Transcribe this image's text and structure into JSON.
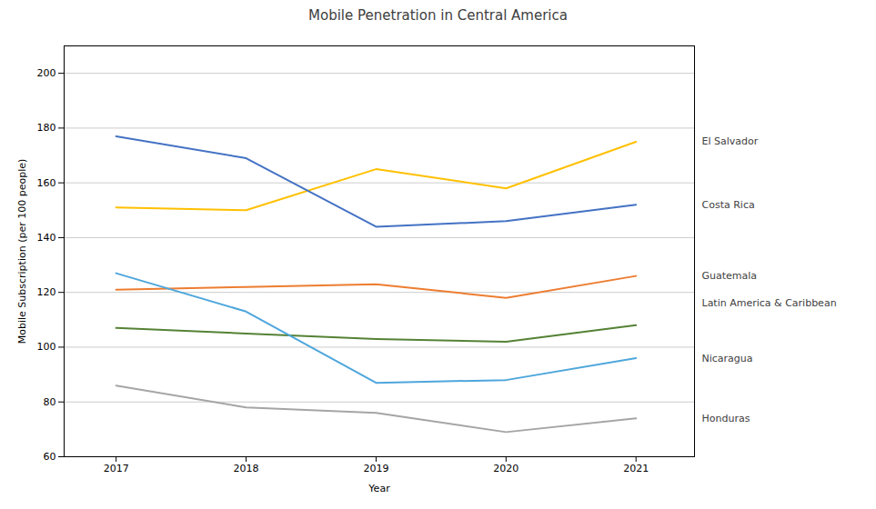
{
  "chart_data": {
    "type": "line",
    "title": "Mobile Penetration in Central America",
    "xlabel": "Year",
    "ylabel": "Mobile Subscription (per 100 people)",
    "x": [
      2017,
      2018,
      2019,
      2020,
      2021
    ],
    "series": [
      {
        "name": "El Salvador",
        "color": "#FFC000",
        "values": [
          151,
          150,
          165,
          158,
          175
        ]
      },
      {
        "name": "Costa Rica",
        "color": "#4472C4",
        "values": [
          177,
          169,
          144,
          146,
          152
        ]
      },
      {
        "name": "Guatemala",
        "color": "#ED7D31",
        "values": [
          121,
          122,
          123,
          118,
          126
        ]
      },
      {
        "name": "Latin America & Caribbean",
        "color": "#548235",
        "values": [
          107,
          105,
          103,
          102,
          108
        ]
      },
      {
        "name": "Nicaragua",
        "color": "#4EA6DC",
        "values": [
          127,
          113,
          87,
          88,
          96
        ]
      },
      {
        "name": "Honduras",
        "color": "#A5A5A5",
        "values": [
          86,
          78,
          76,
          69,
          74
        ]
      }
    ],
    "xlim": [
      2016.6,
      2021.45
    ],
    "xticks": [
      2017,
      2018,
      2019,
      2020,
      2021
    ],
    "ylim": [
      60,
      210
    ],
    "yticks": [
      60,
      80,
      100,
      120,
      140,
      160,
      180,
      200
    ],
    "grid": "y",
    "annotations": [
      {
        "text": "El Salvador",
        "x": 2021,
        "y": 175
      },
      {
        "text": "Costa Rica",
        "x": 2021,
        "y": 152
      },
      {
        "text": "Guatemala",
        "x": 2021,
        "y": 126
      },
      {
        "text": "Latin America & Caribbean",
        "x": 2021,
        "y": 116
      },
      {
        "text": "Nicaragua",
        "x": 2021,
        "y": 96
      },
      {
        "text": "Honduras",
        "x": 2021,
        "y": 74
      }
    ]
  }
}
